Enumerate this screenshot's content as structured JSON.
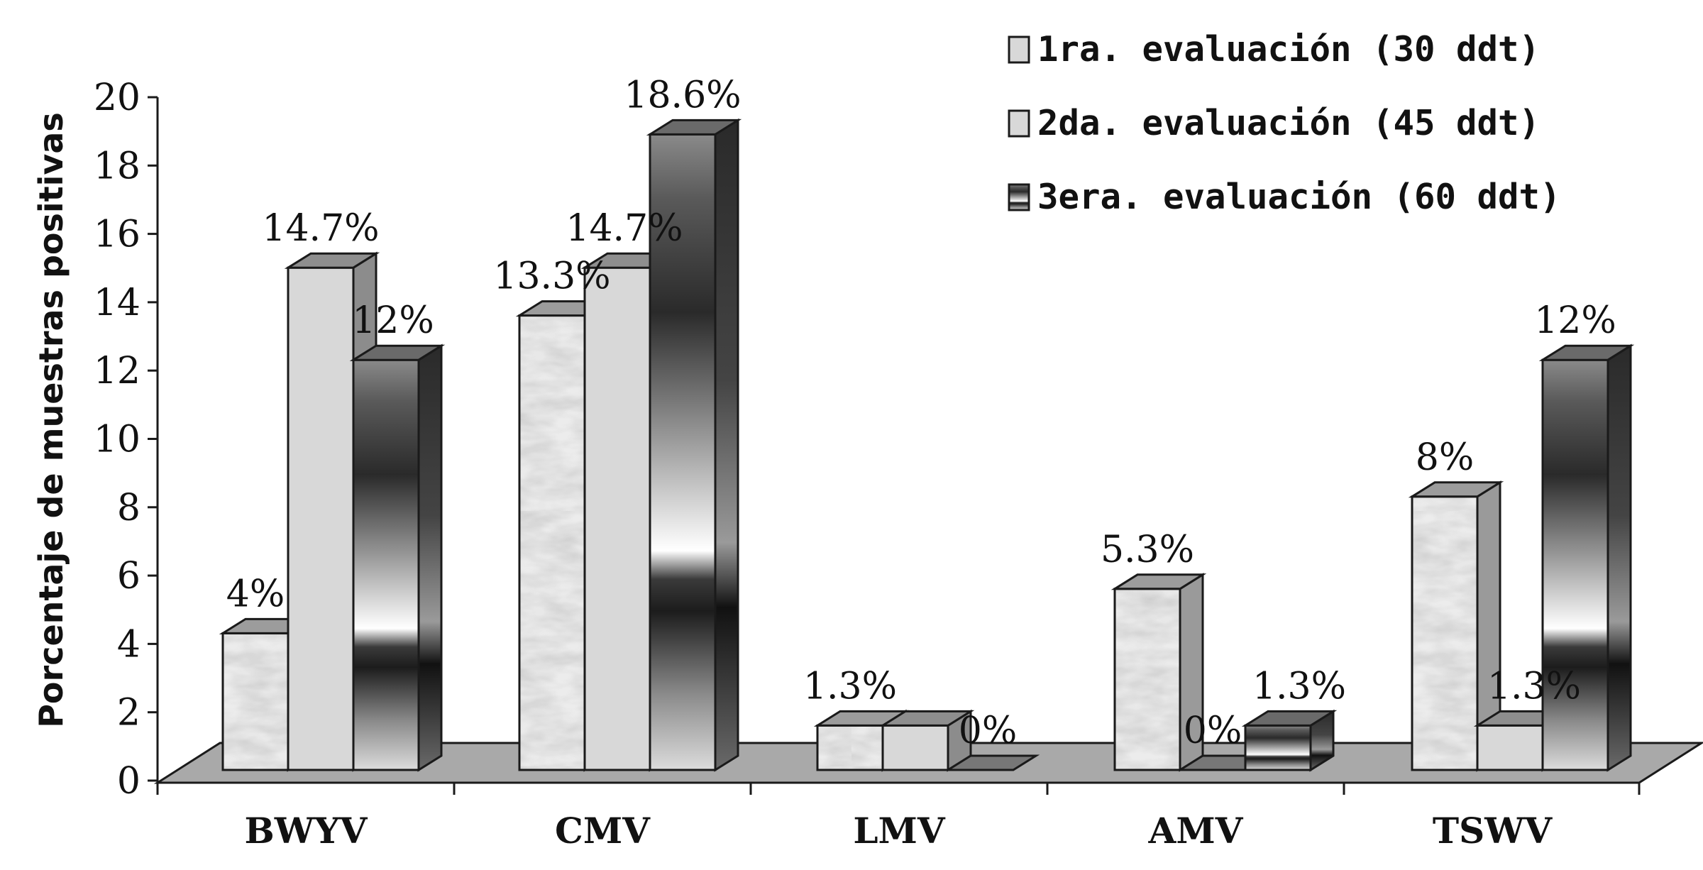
{
  "chart_data": {
    "type": "bar",
    "title": "",
    "xlabel": "",
    "ylabel": "Porcentaje de muestras positivas",
    "ylim": [
      0,
      20
    ],
    "yticks": [
      "0",
      "2",
      "4",
      "6",
      "8",
      "10",
      "12",
      "14",
      "16",
      "18",
      "20"
    ],
    "categories": [
      "BWYV",
      "CMV",
      "LMV",
      "AMV",
      "TSWV"
    ],
    "series": [
      {
        "name": "1ra. evaluación (30 ddt)",
        "values": [
          4,
          13.3,
          1.3,
          5.3,
          8
        ],
        "labels": [
          "4%",
          "13.3%",
          "1.3%",
          "5.3%",
          "8%"
        ],
        "fill": "marble-light"
      },
      {
        "name": "2da. evaluación (45 ddt)",
        "values": [
          14.7,
          14.7,
          1.3,
          0,
          1.3
        ],
        "labels": [
          "14.7%",
          "14.7%",
          "",
          "0%",
          "1.3%"
        ],
        "fill": "#d8d8d8"
      },
      {
        "name": "3era. evaluación (60 ddt)",
        "values": [
          12,
          18.6,
          0,
          1.3,
          12
        ],
        "labels": [
          "12%",
          "18.6%",
          "0%",
          "1.3%",
          "12%"
        ],
        "fill": "metallic-dark-gradient"
      }
    ],
    "legend_position": "top-right",
    "grid": false,
    "style": "3d-column",
    "colors": {
      "floor": "#a9a9a9",
      "outline": "#1a1a1a",
      "light_bar": "#d8d8d8"
    }
  }
}
